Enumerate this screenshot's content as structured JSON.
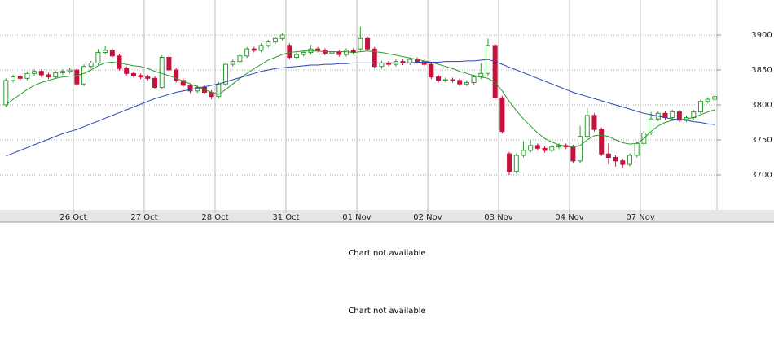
{
  "chart_data": {
    "type": "candlestick",
    "xlim": [
      -0.84,
      100.3
    ],
    "ylim": [
      3650,
      3950
    ],
    "yticks": [
      3700,
      3750,
      3800,
      3850,
      3900
    ],
    "xticks": [
      {
        "value": 9.5,
        "label": "26 Oct"
      },
      {
        "value": 19.5,
        "label": "27 Oct"
      },
      {
        "value": 29.5,
        "label": "28 Oct"
      },
      {
        "value": 39.5,
        "label": "31 Oct"
      },
      {
        "value": 49.5,
        "label": "01 Nov"
      },
      {
        "value": 59.5,
        "label": "02 Nov"
      },
      {
        "value": 69.5,
        "label": "03 Nov"
      },
      {
        "value": 79.5,
        "label": "04 Nov"
      },
      {
        "value": 89.5,
        "label": "07 Nov"
      }
    ],
    "grid": true,
    "up_color": "#2e9e2e",
    "down_color": "#c8103c",
    "candles": {
      "open": [
        3800,
        3835,
        3840,
        3838,
        3845,
        3848,
        3843,
        3840,
        3846,
        3848,
        3850,
        3830,
        3855,
        3860,
        3875,
        3878,
        3870,
        3852,
        3845,
        3842,
        3840,
        3838,
        3825,
        3868,
        3850,
        3835,
        3828,
        3820,
        3825,
        3818,
        3812,
        3830,
        3858,
        3862,
        3870,
        3880,
        3878,
        3885,
        3890,
        3895,
        3885,
        3868,
        3872,
        3875,
        3880,
        3878,
        3874,
        3876,
        3872,
        3878,
        3880,
        3895,
        3880,
        3855,
        3860,
        3858,
        3862,
        3860,
        3865,
        3862,
        3858,
        3840,
        3835,
        3836,
        3835,
        3830,
        3832,
        3840,
        3845,
        3885,
        3810,
        3730,
        3705,
        3728,
        3735,
        3742,
        3738,
        3735,
        3740,
        3742,
        3740,
        3720,
        3755,
        3785,
        3765,
        3730,
        3725,
        3720,
        3715,
        3728,
        3745,
        3760,
        3780,
        3788,
        3782,
        3790,
        3778,
        3782,
        3790,
        3805,
        3808
      ],
      "high": [
        3838,
        3843,
        3843,
        3848,
        3851,
        3851,
        3846,
        3849,
        3851,
        3853,
        3853,
        3858,
        3863,
        3880,
        3885,
        3881,
        3873,
        3855,
        3848,
        3845,
        3843,
        3841,
        3871,
        3871,
        3853,
        3838,
        3831,
        3828,
        3828,
        3821,
        3833,
        3861,
        3865,
        3873,
        3883,
        3883,
        3888,
        3893,
        3898,
        3903,
        3888,
        3875,
        3878,
        3886,
        3883,
        3881,
        3879,
        3879,
        3881,
        3881,
        3912,
        3898,
        3883,
        3863,
        3863,
        3865,
        3865,
        3868,
        3868,
        3865,
        3861,
        3843,
        3839,
        3839,
        3838,
        3835,
        3843,
        3860,
        3895,
        3888,
        3813,
        3733,
        3731,
        3748,
        3750,
        3745,
        3741,
        3743,
        3745,
        3745,
        3743,
        3770,
        3795,
        3788,
        3768,
        3745,
        3728,
        3723,
        3731,
        3748,
        3763,
        3790,
        3791,
        3791,
        3793,
        3793,
        3785,
        3793,
        3808,
        3811,
        3815
      ],
      "low": [
        3797,
        3832,
        3835,
        3835,
        3842,
        3840,
        3837,
        3837,
        3843,
        3845,
        3827,
        3827,
        3852,
        3857,
        3872,
        3867,
        3849,
        3842,
        3839,
        3837,
        3835,
        3822,
        3822,
        3847,
        3832,
        3825,
        3817,
        3817,
        3815,
        3808,
        3809,
        3827,
        3855,
        3859,
        3867,
        3875,
        3875,
        3882,
        3887,
        3892,
        3865,
        3865,
        3869,
        3872,
        3875,
        3871,
        3871,
        3869,
        3869,
        3872,
        3877,
        3877,
        3852,
        3852,
        3855,
        3855,
        3857,
        3857,
        3859,
        3855,
        3837,
        3832,
        3832,
        3832,
        3827,
        3827,
        3829,
        3837,
        3842,
        3807,
        3759,
        3700,
        3702,
        3725,
        3732,
        3735,
        3732,
        3732,
        3737,
        3737,
        3717,
        3717,
        3752,
        3762,
        3727,
        3715,
        3712,
        3710,
        3712,
        3725,
        3742,
        3757,
        3777,
        3779,
        3779,
        3775,
        3775,
        3779,
        3787,
        3802,
        3805
      ],
      "close": [
        3835,
        3840,
        3838,
        3845,
        3848,
        3843,
        3840,
        3846,
        3848,
        3850,
        3830,
        3855,
        3860,
        3875,
        3878,
        3870,
        3852,
        3845,
        3842,
        3840,
        3838,
        3825,
        3868,
        3850,
        3835,
        3828,
        3820,
        3825,
        3818,
        3812,
        3830,
        3858,
        3862,
        3870,
        3880,
        3878,
        3885,
        3890,
        3895,
        3900,
        3868,
        3872,
        3875,
        3880,
        3878,
        3874,
        3876,
        3872,
        3878,
        3875,
        3895,
        3880,
        3855,
        3860,
        3858,
        3862,
        3860,
        3865,
        3862,
        3858,
        3840,
        3835,
        3836,
        3835,
        3830,
        3832,
        3840,
        3845,
        3885,
        3810,
        3762,
        3705,
        3728,
        3735,
        3742,
        3738,
        3735,
        3740,
        3742,
        3740,
        3720,
        3755,
        3785,
        3765,
        3730,
        3725,
        3720,
        3715,
        3728,
        3745,
        3760,
        3780,
        3788,
        3782,
        3790,
        3778,
        3782,
        3790,
        3805,
        3808,
        3812
      ]
    },
    "series": [
      {
        "color": "#2b9a2b",
        "values": [
          3800,
          3808,
          3815,
          3822,
          3828,
          3832,
          3835,
          3838,
          3840,
          3841,
          3842,
          3845,
          3850,
          3856,
          3860,
          3861,
          3860,
          3858,
          3856,
          3855,
          3852,
          3848,
          3845,
          3842,
          3838,
          3834,
          3830,
          3826,
          3822,
          3818,
          3815,
          3822,
          3830,
          3838,
          3845,
          3852,
          3858,
          3864,
          3868,
          3872,
          3875,
          3876,
          3877,
          3877,
          3877,
          3876,
          3876,
          3876,
          3876,
          3875,
          3876,
          3877,
          3876,
          3875,
          3873,
          3871,
          3869,
          3867,
          3865,
          3863,
          3861,
          3858,
          3855,
          3852,
          3848,
          3845,
          3842,
          3840,
          3838,
          3832,
          3820,
          3805,
          3792,
          3780,
          3770,
          3760,
          3752,
          3747,
          3743,
          3741,
          3740,
          3742,
          3750,
          3756,
          3757,
          3755,
          3750,
          3746,
          3744,
          3745,
          3752,
          3762,
          3770,
          3775,
          3778,
          3779,
          3780,
          3782,
          3786,
          3790,
          3793
        ]
      },
      {
        "color": "#2b45b5",
        "values": [
          3727,
          3731,
          3735,
          3739,
          3743,
          3747,
          3751,
          3755,
          3759,
          3762,
          3765,
          3769,
          3773,
          3777,
          3781,
          3785,
          3789,
          3793,
          3797,
          3801,
          3805,
          3809,
          3812,
          3815,
          3818,
          3820,
          3822,
          3824,
          3826,
          3828,
          3830,
          3833,
          3836,
          3839,
          3842,
          3845,
          3848,
          3850,
          3852,
          3853,
          3854,
          3855,
          3856,
          3857,
          3857,
          3858,
          3858,
          3859,
          3859,
          3860,
          3860,
          3860,
          3860,
          3860,
          3860,
          3860,
          3860,
          3860,
          3861,
          3861,
          3861,
          3861,
          3862,
          3862,
          3862,
          3863,
          3863,
          3864,
          3865,
          3862,
          3858,
          3854,
          3850,
          3846,
          3842,
          3838,
          3834,
          3830,
          3826,
          3822,
          3818,
          3815,
          3812,
          3809,
          3806,
          3803,
          3800,
          3797,
          3794,
          3791,
          3788,
          3786,
          3784,
          3782,
          3780,
          3779,
          3778,
          3776,
          3775,
          3773,
          3772
        ]
      }
    ]
  },
  "messages": [
    "Chart not available",
    "Chart not available"
  ]
}
